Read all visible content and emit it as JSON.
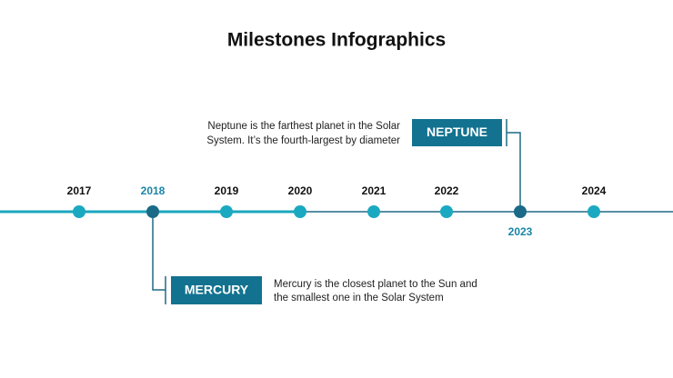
{
  "title": "Milestones Infographics",
  "timeline": {
    "years": [
      "2017",
      "2018",
      "2019",
      "2020",
      "2021",
      "2022",
      "2023",
      "2024"
    ]
  },
  "milestones": [
    {
      "label": "NEPTUNE",
      "description": [
        "Neptune is the farthest planet in the Solar",
        "System. It’s the fourth-largest by diameter"
      ]
    },
    {
      "label": "MERCURY",
      "description": [
        "Mercury is the closest planet to the Sun and",
        "the smallest one in the Solar System"
      ]
    }
  ]
}
